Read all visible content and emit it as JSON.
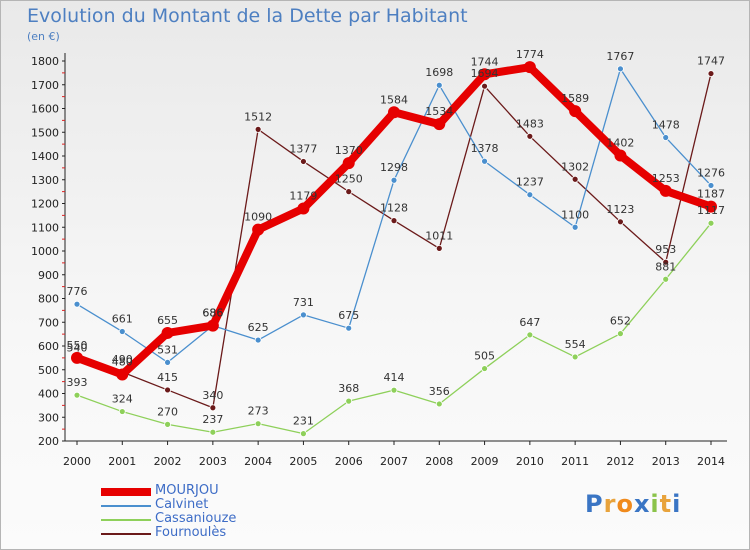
{
  "header": {
    "title": "Evolution du Montant de la Dette par Habitant",
    "subtitle": "(en €)"
  },
  "logo": {
    "text": "Proxiti",
    "letter_colors": [
      "#3a75c4",
      "#e8a33c",
      "#f08a1c",
      "#3a75c4",
      "#8bc34a",
      "#e8a33c",
      "#3a75c4"
    ]
  },
  "chart_data": {
    "type": "line",
    "title": "Evolution du Montant de la Dette par Habitant",
    "subtitle": "(en €)",
    "xlabel": "",
    "ylabel": "",
    "x": [
      "2000",
      "2001",
      "2002",
      "2003",
      "2004",
      "2005",
      "2006",
      "2007",
      "2008",
      "2009",
      "2010",
      "2011",
      "2012",
      "2013",
      "2014"
    ],
    "yticks": [
      "200",
      "300",
      "400",
      "500",
      "600",
      "700",
      "800",
      "900",
      "1000",
      "1100",
      "1200",
      "1300",
      "1400",
      "1500",
      "1600",
      "1700",
      "1800"
    ],
    "ylim": [
      200,
      1800
    ],
    "grid": false,
    "legend_position": "bottom-left",
    "series": [
      {
        "name": "MOURJOU",
        "color": "#e60000",
        "values": [
          550,
          480,
          655,
          686,
          1090,
          1179,
          1370,
          1584,
          1534,
          1744,
          1774,
          1589,
          1402,
          1253,
          1187
        ]
      },
      {
        "name": "Calvinet",
        "color": "#4a8fce",
        "values": [
          776,
          661,
          531,
          686,
          625,
          731,
          675,
          1298,
          1698,
          1378,
          1237,
          1100,
          1767,
          1478,
          1276
        ]
      },
      {
        "name": "Cassaniouze",
        "color": "#8ed05a",
        "values": [
          393,
          324,
          270,
          237,
          273,
          231,
          368,
          414,
          356,
          505,
          647,
          554,
          652,
          881,
          1117
        ]
      },
      {
        "name": "Fournoulès",
        "color": "#6b1a1a",
        "values": [
          540,
          490,
          415,
          340,
          1512,
          1377,
          1250,
          1128,
          1011,
          1694,
          1483,
          1302,
          1123,
          953,
          1747
        ]
      }
    ]
  }
}
